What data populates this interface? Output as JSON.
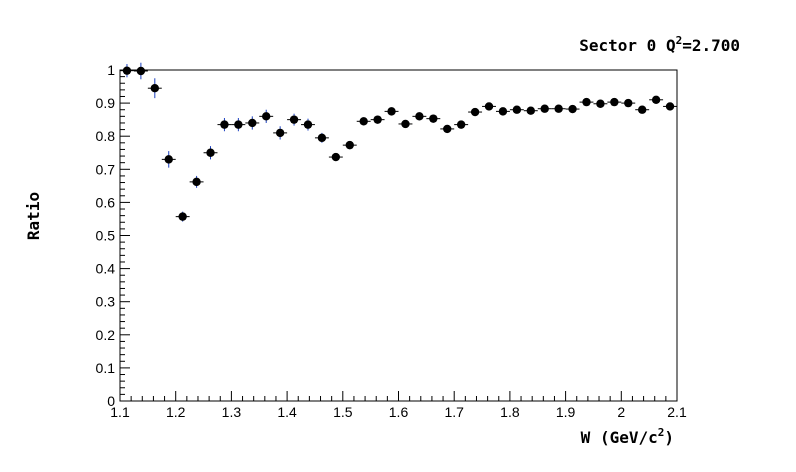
{
  "chart_data": {
    "type": "scatter",
    "title": {
      "prefix": "Sector 0 Q",
      "sup": "2",
      "suffix": "=2.700"
    },
    "xlabel": {
      "prefix": "W (GeV/c",
      "sup": "2",
      "suffix": ")"
    },
    "ylabel": "Ratio",
    "xlim": [
      1.1,
      2.1
    ],
    "ylim": [
      0,
      1
    ],
    "xticks": [
      "1.1",
      "1.2",
      "1.3",
      "1.4",
      "1.5",
      "1.6",
      "1.7",
      "1.8",
      "1.9",
      "2",
      "2.1"
    ],
    "yticks": [
      "0",
      "0.1",
      "0.2",
      "0.3",
      "0.4",
      "0.5",
      "0.6",
      "0.7",
      "0.8",
      "0.9",
      "1"
    ],
    "x_half_width": 0.0125,
    "marker_color": "#000000",
    "error_color": "#1a3fbf",
    "grid": false,
    "points": [
      {
        "x": 1.1125,
        "y": 0.998,
        "e": 0.02
      },
      {
        "x": 1.1375,
        "y": 0.997,
        "e": 0.025
      },
      {
        "x": 1.1625,
        "y": 0.945,
        "e": 0.03
      },
      {
        "x": 1.1875,
        "y": 0.73,
        "e": 0.025
      },
      {
        "x": 1.2125,
        "y": 0.557,
        "e": 0.015
      },
      {
        "x": 1.2375,
        "y": 0.662,
        "e": 0.018
      },
      {
        "x": 1.2625,
        "y": 0.75,
        "e": 0.02
      },
      {
        "x": 1.2875,
        "y": 0.835,
        "e": 0.02
      },
      {
        "x": 1.3125,
        "y": 0.835,
        "e": 0.02
      },
      {
        "x": 1.3375,
        "y": 0.84,
        "e": 0.02
      },
      {
        "x": 1.3625,
        "y": 0.86,
        "e": 0.02
      },
      {
        "x": 1.3875,
        "y": 0.81,
        "e": 0.02
      },
      {
        "x": 1.4125,
        "y": 0.85,
        "e": 0.018
      },
      {
        "x": 1.4375,
        "y": 0.835,
        "e": 0.018
      },
      {
        "x": 1.4625,
        "y": 0.795,
        "e": 0.015
      },
      {
        "x": 1.4875,
        "y": 0.737,
        "e": 0.012
      },
      {
        "x": 1.5125,
        "y": 0.773,
        "e": 0.012
      },
      {
        "x": 1.5375,
        "y": 0.845,
        "e": 0.012
      },
      {
        "x": 1.5625,
        "y": 0.85,
        "e": 0.012
      },
      {
        "x": 1.5875,
        "y": 0.875,
        "e": 0.012
      },
      {
        "x": 1.6125,
        "y": 0.837,
        "e": 0.012
      },
      {
        "x": 1.6375,
        "y": 0.86,
        "e": 0.012
      },
      {
        "x": 1.6625,
        "y": 0.853,
        "e": 0.012
      },
      {
        "x": 1.6875,
        "y": 0.822,
        "e": 0.012
      },
      {
        "x": 1.7125,
        "y": 0.835,
        "e": 0.01
      },
      {
        "x": 1.7375,
        "y": 0.873,
        "e": 0.01
      },
      {
        "x": 1.7625,
        "y": 0.89,
        "e": 0.01
      },
      {
        "x": 1.7875,
        "y": 0.875,
        "e": 0.01
      },
      {
        "x": 1.8125,
        "y": 0.88,
        "e": 0.01
      },
      {
        "x": 1.8375,
        "y": 0.877,
        "e": 0.01
      },
      {
        "x": 1.8625,
        "y": 0.883,
        "e": 0.01
      },
      {
        "x": 1.8875,
        "y": 0.883,
        "e": 0.01
      },
      {
        "x": 1.9125,
        "y": 0.882,
        "e": 0.01
      },
      {
        "x": 1.9375,
        "y": 0.903,
        "e": 0.01
      },
      {
        "x": 1.9625,
        "y": 0.898,
        "e": 0.01
      },
      {
        "x": 1.9875,
        "y": 0.903,
        "e": 0.01
      },
      {
        "x": 2.0125,
        "y": 0.9,
        "e": 0.01
      },
      {
        "x": 2.0375,
        "y": 0.88,
        "e": 0.01
      },
      {
        "x": 2.0625,
        "y": 0.91,
        "e": 0.01
      },
      {
        "x": 2.0875,
        "y": 0.89,
        "e": 0.01
      }
    ]
  }
}
